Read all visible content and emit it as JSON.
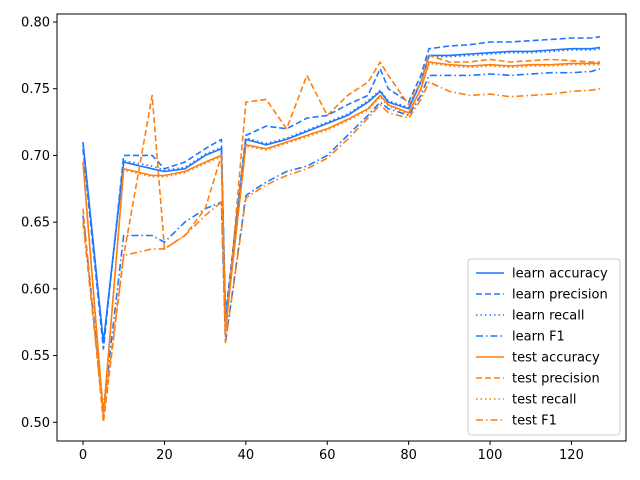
{
  "chart_data": {
    "type": "line",
    "title": "",
    "xlabel": "",
    "ylabel": "",
    "xlim": [
      -6.4,
      133.4
    ],
    "ylim": [
      0.486,
      0.806
    ],
    "xticks": [
      0,
      20,
      40,
      60,
      80,
      100,
      120
    ],
    "yticks": [
      0.5,
      0.55,
      0.6,
      0.65,
      0.7,
      0.75,
      0.8
    ],
    "xtick_labels": [
      "0",
      "20",
      "40",
      "60",
      "80",
      "100",
      "120"
    ],
    "ytick_labels": [
      "0.50",
      "0.55",
      "0.60",
      "0.65",
      "0.70",
      "0.75",
      "0.80"
    ],
    "grid": false,
    "legend_position": "lower-right",
    "x": [
      0,
      5,
      10,
      17,
      20,
      25,
      30,
      34,
      35,
      40,
      45,
      50,
      55,
      60,
      65,
      70,
      73,
      75,
      80,
      83,
      85,
      90,
      95,
      100,
      105,
      110,
      115,
      120,
      125,
      127
    ],
    "series": [
      {
        "name": "learn accuracy",
        "color": "#1f77ff",
        "dash": "solid",
        "values": [
          0.71,
          0.56,
          0.695,
          0.69,
          0.688,
          0.69,
          0.7,
          0.705,
          0.575,
          0.712,
          0.708,
          0.712,
          0.718,
          0.724,
          0.73,
          0.74,
          0.748,
          0.74,
          0.735,
          0.755,
          0.775,
          0.775,
          0.776,
          0.777,
          0.778,
          0.778,
          0.779,
          0.78,
          0.78,
          0.781
        ]
      },
      {
        "name": "learn precision",
        "color": "#1f77ff",
        "dash": "dashed",
        "values": [
          0.705,
          0.555,
          0.7,
          0.7,
          0.69,
          0.695,
          0.705,
          0.712,
          0.58,
          0.715,
          0.722,
          0.72,
          0.728,
          0.73,
          0.738,
          0.745,
          0.765,
          0.75,
          0.74,
          0.76,
          0.78,
          0.782,
          0.783,
          0.785,
          0.785,
          0.786,
          0.787,
          0.788,
          0.788,
          0.789
        ]
      },
      {
        "name": "learn recall",
        "color": "#1f77ff",
        "dash": "dotted",
        "values": [
          0.708,
          0.558,
          0.696,
          0.692,
          0.689,
          0.691,
          0.701,
          0.706,
          0.576,
          0.713,
          0.709,
          0.713,
          0.719,
          0.725,
          0.731,
          0.741,
          0.749,
          0.741,
          0.736,
          0.756,
          0.774,
          0.774,
          0.775,
          0.776,
          0.777,
          0.777,
          0.778,
          0.779,
          0.779,
          0.78
        ]
      },
      {
        "name": "learn F1",
        "color": "#1f77ff",
        "dash": "dashdot",
        "values": [
          0.655,
          0.51,
          0.64,
          0.64,
          0.635,
          0.65,
          0.66,
          0.665,
          0.56,
          0.67,
          0.68,
          0.688,
          0.692,
          0.7,
          0.715,
          0.73,
          0.74,
          0.735,
          0.73,
          0.745,
          0.76,
          0.76,
          0.76,
          0.761,
          0.76,
          0.761,
          0.762,
          0.762,
          0.763,
          0.765
        ]
      },
      {
        "name": "test accuracy",
        "color": "#ff7f0e",
        "dash": "solid",
        "values": [
          0.695,
          0.505,
          0.69,
          0.685,
          0.685,
          0.688,
          0.695,
          0.7,
          0.57,
          0.708,
          0.705,
          0.71,
          0.715,
          0.72,
          0.727,
          0.735,
          0.745,
          0.738,
          0.732,
          0.75,
          0.77,
          0.768,
          0.767,
          0.768,
          0.767,
          0.768,
          0.768,
          0.769,
          0.769,
          0.769
        ]
      },
      {
        "name": "test precision",
        "color": "#ff7f0e",
        "dash": "dashed",
        "values": [
          0.66,
          0.5,
          0.625,
          0.745,
          0.63,
          0.64,
          0.66,
          0.7,
          0.565,
          0.74,
          0.742,
          0.72,
          0.76,
          0.73,
          0.745,
          0.755,
          0.77,
          0.76,
          0.738,
          0.755,
          0.775,
          0.77,
          0.77,
          0.772,
          0.77,
          0.771,
          0.772,
          0.771,
          0.77,
          0.77
        ]
      },
      {
        "name": "test recall",
        "color": "#ff7f0e",
        "dash": "dotted",
        "values": [
          0.694,
          0.506,
          0.689,
          0.684,
          0.684,
          0.687,
          0.694,
          0.699,
          0.571,
          0.707,
          0.704,
          0.709,
          0.714,
          0.719,
          0.726,
          0.734,
          0.744,
          0.737,
          0.731,
          0.749,
          0.769,
          0.767,
          0.766,
          0.767,
          0.766,
          0.767,
          0.767,
          0.768,
          0.768,
          0.768
        ]
      },
      {
        "name": "test F1",
        "color": "#ff7f0e",
        "dash": "dashdot",
        "values": [
          0.65,
          0.505,
          0.625,
          0.63,
          0.63,
          0.64,
          0.655,
          0.665,
          0.56,
          0.668,
          0.678,
          0.685,
          0.69,
          0.698,
          0.712,
          0.728,
          0.738,
          0.732,
          0.728,
          0.742,
          0.755,
          0.748,
          0.745,
          0.746,
          0.744,
          0.745,
          0.746,
          0.748,
          0.749,
          0.75
        ]
      }
    ]
  }
}
